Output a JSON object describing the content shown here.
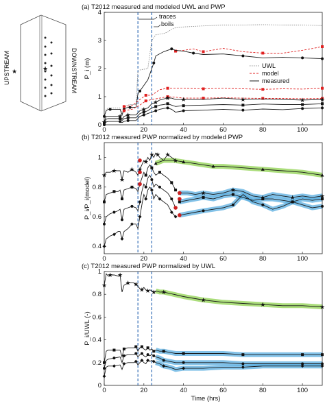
{
  "chart_data": [
    {
      "type": "line",
      "panel_title": "(a) T2012 measured and modeled UWL and PWP",
      "xlabel": "",
      "ylabel": "P_i (m)",
      "xlim": [
        0,
        110
      ],
      "ylim": [
        0,
        4
      ],
      "xticks": [
        "0",
        "20",
        "40",
        "60",
        "80",
        "100"
      ],
      "yticks": [
        "0",
        "1",
        "2",
        "3",
        "4"
      ],
      "legend": [
        "UWL",
        "model",
        "measured"
      ],
      "legend_position": "right",
      "vlines": [
        17,
        24
      ],
      "annotations": [
        "traces",
        "boils"
      ],
      "series": [
        {
          "name": "UWL",
          "x": [
            0,
            1,
            2,
            3,
            8,
            9,
            10,
            11,
            12,
            13,
            16,
            17,
            18,
            22,
            24,
            25,
            26,
            30,
            32,
            34,
            36,
            40,
            50,
            60,
            70,
            80,
            90,
            100,
            110
          ],
          "y": [
            0.3,
            0.55,
            0.6,
            0.6,
            0.6,
            0.4,
            0.6,
            0.68,
            0.7,
            0.72,
            0.72,
            1.9,
            1.95,
            2.0,
            3.0,
            3.1,
            3.2,
            3.25,
            3.3,
            3.4,
            3.45,
            3.48,
            3.52,
            3.55,
            3.55,
            3.56,
            3.55,
            3.55,
            3.53
          ]
        },
        {
          "name": "model",
          "x": [
            36,
            40,
            45,
            50,
            60,
            70,
            80,
            90,
            100,
            110
          ],
          "y": [
            2.62,
            2.65,
            2.7,
            2.6,
            2.72,
            2.6,
            2.55,
            2.55,
            2.65,
            2.78
          ]
        },
        {
          "name": "measured",
          "x": [
            0,
            1,
            2,
            3,
            8,
            9,
            10,
            11,
            12,
            13,
            16,
            17,
            18,
            22,
            24,
            25,
            26,
            30,
            34,
            36,
            40,
            45,
            50,
            60,
            70,
            80,
            90,
            100,
            110
          ],
          "y": [
            0.3,
            0.5,
            0.55,
            0.55,
            0.55,
            0.35,
            0.55,
            0.6,
            0.62,
            0.62,
            0.62,
            1.1,
            1.2,
            1.6,
            2.0,
            2.2,
            2.45,
            2.6,
            2.7,
            2.65,
            2.62,
            2.55,
            2.5,
            2.52,
            2.45,
            2.38,
            2.4,
            2.38,
            2.35
          ]
        },
        {
          "name": "model",
          "x": [
            10,
            14,
            18,
            21,
            24,
            28,
            32,
            36,
            40,
            50,
            60,
            70,
            80,
            90,
            100,
            110
          ],
          "y": [
            0.65,
            0.68,
            0.9,
            1.05,
            1.05,
            1.25,
            1.3,
            1.3,
            1.3,
            1.28,
            1.3,
            1.28,
            1.26,
            1.28,
            1.27,
            1.3
          ]
        },
        {
          "name": "model",
          "x": [
            10,
            14,
            18,
            21,
            24,
            28,
            32,
            36,
            40,
            50,
            60,
            70,
            80,
            90,
            100,
            110
          ],
          "y": [
            0.5,
            0.55,
            0.7,
            0.85,
            0.9,
            0.95,
            1.0,
            0.98,
            0.95,
            0.95,
            0.96,
            0.95,
            0.94,
            0.94,
            0.93,
            0.94
          ]
        },
        {
          "name": "measured",
          "x": [
            0,
            1,
            2,
            8,
            9,
            10,
            12,
            16,
            18,
            20,
            22,
            24,
            26,
            28,
            30,
            32,
            34,
            36,
            40,
            50,
            60,
            70,
            80,
            90,
            100,
            110
          ],
          "y": [
            0.1,
            0.3,
            0.3,
            0.3,
            0.2,
            0.3,
            0.35,
            0.35,
            0.5,
            0.55,
            0.6,
            0.75,
            0.8,
            0.88,
            0.92,
            0.95,
            0.95,
            0.9,
            0.9,
            0.9,
            0.95,
            0.9,
            0.92,
            0.9,
            0.88,
            0.9
          ]
        },
        {
          "name": "measured",
          "x": [
            0,
            1,
            2,
            8,
            9,
            10,
            12,
            16,
            18,
            20,
            22,
            24,
            26,
            28,
            30,
            32,
            34,
            36,
            40,
            50,
            60,
            70,
            80,
            90,
            100,
            110
          ],
          "y": [
            0.05,
            0.2,
            0.22,
            0.22,
            0.15,
            0.22,
            0.25,
            0.25,
            0.4,
            0.45,
            0.5,
            0.6,
            0.65,
            0.7,
            0.72,
            0.75,
            0.7,
            0.65,
            0.68,
            0.7,
            0.72,
            0.7,
            0.74,
            0.72,
            0.72,
            0.75
          ]
        },
        {
          "name": "measured",
          "x": [
            0,
            1,
            2,
            8,
            9,
            10,
            12,
            16,
            18,
            20,
            22,
            24,
            26,
            28,
            30,
            32,
            34,
            36,
            40,
            50,
            60,
            70,
            80,
            90,
            100,
            110
          ],
          "y": [
            0.0,
            0.1,
            0.12,
            0.12,
            0.08,
            0.12,
            0.15,
            0.15,
            0.3,
            0.35,
            0.4,
            0.45,
            0.5,
            0.55,
            0.58,
            0.6,
            0.55,
            0.45,
            0.5,
            0.52,
            0.55,
            0.52,
            0.56,
            0.54,
            0.58,
            0.6
          ]
        }
      ]
    },
    {
      "type": "line",
      "panel_title": "(b) T2012 measured PWP normalized by modeled PWP",
      "xlabel": "",
      "ylabel": "P_i/P_i(model)",
      "xlim": [
        0,
        110
      ],
      "ylim": [
        0.35,
        1.1
      ],
      "xticks": [
        "0",
        "20",
        "40",
        "60",
        "80",
        "100"
      ],
      "yticks": [
        "0.4",
        "0.6",
        "0.8",
        "1"
      ],
      "vlines": [
        17,
        24
      ],
      "series": [
        {
          "x": [
            0,
            1,
            3,
            5,
            7,
            8,
            9,
            10,
            12,
            14,
            16,
            17,
            18,
            19,
            20,
            21,
            22,
            23,
            24,
            25,
            26,
            27,
            28,
            30,
            32,
            34,
            36
          ],
          "y": [
            0.88,
            0.9,
            0.9,
            0.91,
            0.91,
            0.91,
            0.85,
            0.91,
            0.9,
            0.92,
            0.9,
            0.88,
            0.92,
            0.95,
            0.98,
            0.97,
            1.0,
            0.98,
            1.02,
            1.0,
            1.03,
            1.02,
            1.0,
            0.98,
            1.02,
            1.0,
            0.98
          ]
        },
        {
          "x": [
            0,
            1,
            3,
            5,
            7,
            8,
            9,
            10,
            12,
            14,
            16,
            17,
            18,
            19,
            20,
            21,
            22,
            23,
            24,
            25,
            26,
            28,
            30,
            32,
            34,
            36
          ],
          "y": [
            0.7,
            0.75,
            0.76,
            0.77,
            0.77,
            0.78,
            0.72,
            0.78,
            0.79,
            0.8,
            0.79,
            0.77,
            0.82,
            0.86,
            0.9,
            0.88,
            0.93,
            0.95,
            0.93,
            0.9,
            0.88,
            0.9,
            0.88,
            0.86,
            0.83,
            0.78
          ]
        },
        {
          "x": [
            0,
            1,
            3,
            5,
            7,
            8,
            9,
            10,
            12,
            14,
            16,
            17,
            18,
            19,
            20,
            21,
            22,
            23,
            24,
            25,
            26,
            28,
            30,
            32,
            34,
            36
          ],
          "y": [
            0.55,
            0.6,
            0.62,
            0.63,
            0.64,
            0.65,
            0.58,
            0.65,
            0.66,
            0.67,
            0.66,
            0.64,
            0.7,
            0.77,
            0.82,
            0.8,
            0.86,
            0.88,
            0.85,
            0.8,
            0.82,
            0.8,
            0.78,
            0.76,
            0.72,
            0.66
          ]
        },
        {
          "x": [
            0,
            1,
            3,
            5,
            7,
            8,
            9,
            10,
            12,
            14,
            16,
            17,
            18,
            19,
            20,
            21,
            22,
            23,
            24,
            25,
            26,
            28,
            30,
            32,
            34,
            36
          ],
          "y": [
            0.4,
            0.45,
            0.47,
            0.48,
            0.5,
            0.5,
            0.45,
            0.5,
            0.52,
            0.55,
            0.55,
            0.52,
            0.6,
            0.68,
            0.75,
            0.72,
            0.78,
            0.8,
            0.78,
            0.72,
            0.75,
            0.72,
            0.7,
            0.68,
            0.63,
            0.6
          ]
        },
        {
          "x": [
            26,
            30,
            35,
            40,
            45,
            50,
            55,
            60,
            70,
            80,
            90,
            100,
            110
          ],
          "y": [
            0.96,
            0.98,
            0.98,
            0.97,
            0.96,
            0.95,
            0.94,
            0.94,
            0.93,
            0.92,
            0.91,
            0.9,
            0.88
          ]
        },
        {
          "x": [
            38,
            42,
            46,
            50,
            55,
            60,
            65,
            70,
            75,
            80,
            85,
            90,
            95,
            100,
            105,
            110
          ],
          "y": [
            0.76,
            0.76,
            0.75,
            0.76,
            0.75,
            0.76,
            0.78,
            0.77,
            0.74,
            0.73,
            0.75,
            0.74,
            0.73,
            0.74,
            0.73,
            0.74
          ]
        },
        {
          "x": [
            38,
            42,
            46,
            50,
            55,
            60,
            65,
            70,
            75,
            80,
            85,
            90,
            95,
            100,
            105,
            110
          ],
          "y": [
            0.7,
            0.71,
            0.72,
            0.73,
            0.72,
            0.74,
            0.75,
            0.73,
            0.71,
            0.72,
            0.72,
            0.71,
            0.7,
            0.72,
            0.71,
            0.72
          ]
        },
        {
          "x": [
            38,
            42,
            46,
            50,
            55,
            60,
            65,
            70,
            75,
            80,
            85,
            90,
            95,
            100,
            105,
            110
          ],
          "y": [
            0.61,
            0.62,
            0.63,
            0.64,
            0.65,
            0.66,
            0.68,
            0.75,
            0.7,
            0.68,
            0.65,
            0.67,
            0.7,
            0.68,
            0.66,
            0.67
          ]
        }
      ]
    },
    {
      "type": "line",
      "panel_title": "(c) T2012 measured PWP normalized by UWL",
      "xlabel": "Time (hrs)",
      "ylabel": "P_i/UWL (-)",
      "xlim": [
        0,
        110
      ],
      "ylim": [
        0,
        1
      ],
      "xticks": [
        "0",
        "20",
        "40",
        "60",
        "80",
        "100"
      ],
      "yticks": [
        "0",
        "0.2",
        "0.4",
        "0.6",
        "0.8",
        "1"
      ],
      "vlines": [
        17,
        24
      ],
      "series": [
        {
          "x": [
            0,
            1,
            2,
            3,
            5,
            7,
            8,
            9,
            10,
            12,
            14,
            15,
            16,
            17,
            18,
            19,
            20,
            21,
            22,
            23,
            24,
            25,
            26,
            28,
            30,
            35,
            40,
            50,
            60,
            70,
            80,
            90,
            100,
            110
          ],
          "y": [
            0.88,
            0.98,
            0.96,
            0.97,
            0.97,
            0.96,
            0.97,
            0.82,
            0.88,
            0.9,
            0.9,
            0.9,
            0.89,
            0.87,
            0.85,
            0.84,
            0.86,
            0.84,
            0.83,
            0.84,
            0.83,
            0.82,
            0.83,
            0.82,
            0.82,
            0.8,
            0.78,
            0.75,
            0.73,
            0.72,
            0.71,
            0.7,
            0.7,
            0.69
          ]
        },
        {
          "x": [
            0,
            1,
            2,
            5,
            8,
            9,
            10,
            12,
            15,
            16,
            17,
            18,
            19,
            20,
            21,
            22,
            23,
            24,
            25,
            26,
            28,
            30,
            33,
            36,
            40,
            50,
            60,
            70,
            80,
            90,
            100,
            110
          ],
          "y": [
            0.2,
            0.3,
            0.31,
            0.31,
            0.31,
            0.25,
            0.32,
            0.33,
            0.33,
            0.34,
            0.3,
            0.33,
            0.34,
            0.32,
            0.31,
            0.33,
            0.31,
            0.32,
            0.3,
            0.31,
            0.3,
            0.3,
            0.29,
            0.28,
            0.28,
            0.28,
            0.28,
            0.27,
            0.27,
            0.27,
            0.27,
            0.27
          ]
        },
        {
          "x": [
            0,
            1,
            2,
            5,
            8,
            9,
            10,
            12,
            15,
            16,
            17,
            18,
            19,
            20,
            21,
            22,
            23,
            24,
            25,
            26,
            28,
            30,
            33,
            36,
            40,
            50,
            60,
            70,
            80,
            90,
            100,
            110
          ],
          "y": [
            0.15,
            0.22,
            0.23,
            0.24,
            0.25,
            0.2,
            0.26,
            0.27,
            0.27,
            0.28,
            0.25,
            0.27,
            0.28,
            0.26,
            0.25,
            0.27,
            0.26,
            0.27,
            0.26,
            0.25,
            0.24,
            0.22,
            0.21,
            0.2,
            0.2,
            0.2,
            0.2,
            0.19,
            0.19,
            0.19,
            0.19,
            0.19
          ]
        },
        {
          "x": [
            0,
            1,
            2,
            5,
            8,
            9,
            10,
            12,
            15,
            16,
            17,
            18,
            19,
            20,
            21,
            22,
            23,
            24,
            25,
            26,
            28,
            30,
            33,
            36,
            40,
            50,
            60,
            70,
            80,
            90,
            100,
            110
          ],
          "y": [
            0.08,
            0.16,
            0.17,
            0.17,
            0.18,
            0.14,
            0.19,
            0.2,
            0.2,
            0.21,
            0.18,
            0.2,
            0.22,
            0.2,
            0.19,
            0.22,
            0.21,
            0.22,
            0.21,
            0.2,
            0.19,
            0.17,
            0.16,
            0.14,
            0.15,
            0.15,
            0.16,
            0.16,
            0.17,
            0.17,
            0.17,
            0.17
          ]
        }
      ]
    }
  ],
  "schematic": {
    "upstream": "UPSTREAM",
    "downstream": "DOWNSTREAM"
  },
  "colors": {
    "line": "#1a1a1a",
    "uwl": "#8a8a8a",
    "model": "#e02020",
    "vline": "#1f5fb0",
    "band_green": "#8fd14f",
    "band_blue": "#5aaee0"
  }
}
